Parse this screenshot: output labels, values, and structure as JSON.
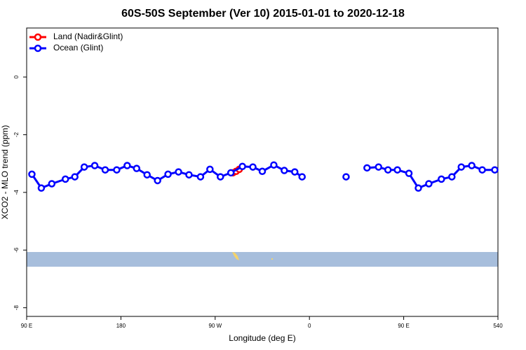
{
  "chart_data": {
    "type": "line",
    "title": "60S-50S September (Ver 10)   2015-01-01 to 2020-12-18",
    "x_label": "Longitude (deg E)",
    "y_label": "XCO2 - MLO trend (ppm)",
    "xlim": [
      90,
      540
    ],
    "ylim": [
      -8.3,
      1.7
    ],
    "xticks": [
      {
        "value": 90,
        "label": "90 E"
      },
      180,
      {
        "value": 270,
        "label": "90 W"
      },
      {
        "value": 360,
        "label": "0"
      },
      {
        "value": 450,
        "label": "90 E"
      },
      540
    ],
    "yticks": [
      0,
      -2,
      -4,
      -6,
      -8
    ],
    "legend": "top-left",
    "series": [
      {
        "name": "Land (Nadir&Glint)",
        "color": "#ff0000",
        "x": [
          287,
          290,
          293
        ],
        "values": [
          -3.32,
          -3.27,
          -3.2
        ]
      },
      {
        "name": "Ocean (Glint)",
        "color": "#0000ff",
        "x": [
          95,
          104,
          114,
          127,
          136,
          145,
          155,
          165,
          176,
          186,
          195,
          205,
          215,
          225,
          235,
          245,
          256,
          265,
          275,
          285,
          296,
          306,
          315,
          326,
          336,
          346,
          353,
          375,
          395,
          405,
          415,
          426,
          435,
          444,
          455,
          464,
          474,
          486,
          496,
          505,
          515,
          525,
          537
        ],
        "values": [
          -3.37,
          -3.85,
          -3.7,
          -3.54,
          -3.46,
          -3.12,
          -3.07,
          -3.22,
          -3.22,
          -3.07,
          -3.17,
          -3.39,
          -3.59,
          -3.37,
          -3.29,
          -3.39,
          -3.46,
          -3.2,
          -3.46,
          -3.32,
          -3.1,
          -3.12,
          -3.27,
          -3.05,
          -3.24,
          -3.29,
          -3.46,
          null,
          -3.46,
          null,
          -3.15,
          -3.12,
          -3.22,
          -3.22,
          -3.34,
          -3.85,
          -3.7,
          -3.54,
          -3.46,
          -3.12,
          -3.07,
          -3.22,
          -3.22
        ]
      }
    ]
  }
}
